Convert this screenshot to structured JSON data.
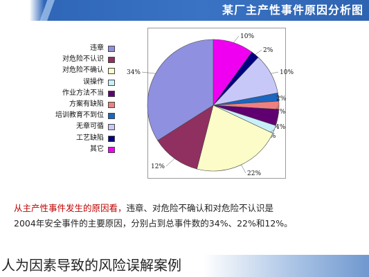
{
  "header": {
    "title": "某厂主产性事件原因分析图"
  },
  "chart_data": {
    "type": "pie",
    "categories": [
      "违章",
      "对危险不认识",
      "对危险不确认",
      "误操作",
      "作业方法不当",
      "方案有缺陷",
      "培训教育不到位",
      "无章可循",
      "工艺缺陷",
      "其它"
    ],
    "values": [
      34,
      12,
      22,
      2,
      4,
      2,
      2,
      10,
      2,
      10
    ],
    "value_labels": [
      "34%",
      "12%",
      "22%",
      "2%",
      "4%",
      "2%",
      "2%",
      "10%",
      "2%",
      "10%"
    ],
    "colors": [
      "#9090e0",
      "#903060",
      "#fcfcc8",
      "#c8f0f8",
      "#600070",
      "#f08080",
      "#1a66c0",
      "#c8c8f8",
      "#000080",
      "#f000f0"
    ],
    "legend_position": "left"
  },
  "analysis": {
    "line1_highlight": "从主产性事件发生的原因看，",
    "line1_rest": "违章、对危险不确认和对危险不认识是",
    "line2": "2004年安全事件的主要原因，分别占到总事件数的34%、22%和12%。"
  },
  "caption": "人为因素导致的风险误解案例"
}
